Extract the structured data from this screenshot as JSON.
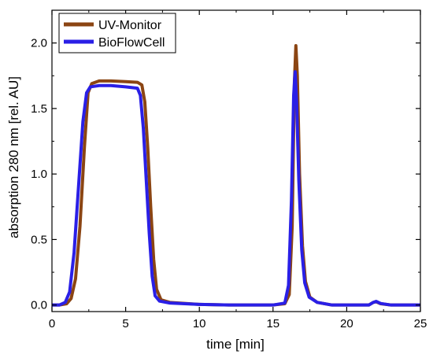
{
  "chart_data": {
    "type": "line",
    "title": "",
    "xlabel": "time [min]",
    "ylabel": "absorption 280 nm [rel. AU]",
    "xlim": [
      0,
      25
    ],
    "ylim": [
      -0.05,
      2.25
    ],
    "xticks": [
      {
        "value": 0,
        "label": "0"
      },
      {
        "value": 5,
        "label": "5"
      },
      {
        "value": 10,
        "label": "10"
      },
      {
        "value": 15,
        "label": "15"
      },
      {
        "value": 20,
        "label": "20"
      },
      {
        "value": 25,
        "label": "25"
      }
    ],
    "yticks": [
      {
        "value": 0.0,
        "label": "0.0"
      },
      {
        "value": 0.5,
        "label": "0.5"
      },
      {
        "value": 1.0,
        "label": "1.0"
      },
      {
        "value": 1.5,
        "label": "1.5"
      },
      {
        "value": 2.0,
        "label": "2.0"
      }
    ],
    "grid": false,
    "legend_position": "top-left",
    "series": [
      {
        "name": "UV-Monitor",
        "color": "#8B4513",
        "points": [
          [
            0,
            0.0
          ],
          [
            0.5,
            0.0
          ],
          [
            1.0,
            0.01
          ],
          [
            1.3,
            0.05
          ],
          [
            1.6,
            0.2
          ],
          [
            1.9,
            0.6
          ],
          [
            2.2,
            1.2
          ],
          [
            2.45,
            1.62
          ],
          [
            2.7,
            1.69
          ],
          [
            3.2,
            1.71
          ],
          [
            4.0,
            1.71
          ],
          [
            5.0,
            1.705
          ],
          [
            5.8,
            1.7
          ],
          [
            6.1,
            1.68
          ],
          [
            6.3,
            1.55
          ],
          [
            6.5,
            1.2
          ],
          [
            6.7,
            0.75
          ],
          [
            6.9,
            0.35
          ],
          [
            7.1,
            0.12
          ],
          [
            7.4,
            0.04
          ],
          [
            8.0,
            0.02
          ],
          [
            10.0,
            0.005
          ],
          [
            12.0,
            0.0
          ],
          [
            15.0,
            0.0
          ],
          [
            15.8,
            0.01
          ],
          [
            16.1,
            0.08
          ],
          [
            16.3,
            0.6
          ],
          [
            16.45,
            1.7
          ],
          [
            16.55,
            1.98
          ],
          [
            16.65,
            1.75
          ],
          [
            16.8,
            1.0
          ],
          [
            17.0,
            0.45
          ],
          [
            17.2,
            0.18
          ],
          [
            17.5,
            0.06
          ],
          [
            18.0,
            0.02
          ],
          [
            19.0,
            0.0
          ],
          [
            21.5,
            0.0
          ],
          [
            21.8,
            0.02
          ],
          [
            22.0,
            0.025
          ],
          [
            22.3,
            0.01
          ],
          [
            23.0,
            0.0
          ],
          [
            25.0,
            0.0
          ]
        ]
      },
      {
        "name": "BioFlowCell",
        "color": "#2A1FE6",
        "points": [
          [
            0,
            0.0
          ],
          [
            0.5,
            0.0
          ],
          [
            0.9,
            0.02
          ],
          [
            1.2,
            0.1
          ],
          [
            1.5,
            0.4
          ],
          [
            1.8,
            0.9
          ],
          [
            2.1,
            1.4
          ],
          [
            2.35,
            1.62
          ],
          [
            2.6,
            1.665
          ],
          [
            3.2,
            1.675
          ],
          [
            4.0,
            1.675
          ],
          [
            5.0,
            1.665
          ],
          [
            5.8,
            1.655
          ],
          [
            6.0,
            1.6
          ],
          [
            6.2,
            1.35
          ],
          [
            6.4,
            0.95
          ],
          [
            6.6,
            0.55
          ],
          [
            6.8,
            0.22
          ],
          [
            7.0,
            0.07
          ],
          [
            7.3,
            0.03
          ],
          [
            8.0,
            0.015
          ],
          [
            10.0,
            0.005
          ],
          [
            12.0,
            0.0
          ],
          [
            15.0,
            0.0
          ],
          [
            15.8,
            0.015
          ],
          [
            16.05,
            0.15
          ],
          [
            16.25,
            0.8
          ],
          [
            16.4,
            1.6
          ],
          [
            16.5,
            1.78
          ],
          [
            16.6,
            1.55
          ],
          [
            16.75,
            0.95
          ],
          [
            16.95,
            0.42
          ],
          [
            17.15,
            0.17
          ],
          [
            17.45,
            0.06
          ],
          [
            18.0,
            0.02
          ],
          [
            19.0,
            0.0
          ],
          [
            21.5,
            0.0
          ],
          [
            21.8,
            0.02
          ],
          [
            22.0,
            0.028
          ],
          [
            22.3,
            0.012
          ],
          [
            23.0,
            0.0
          ],
          [
            25.0,
            0.0
          ]
        ]
      }
    ]
  }
}
